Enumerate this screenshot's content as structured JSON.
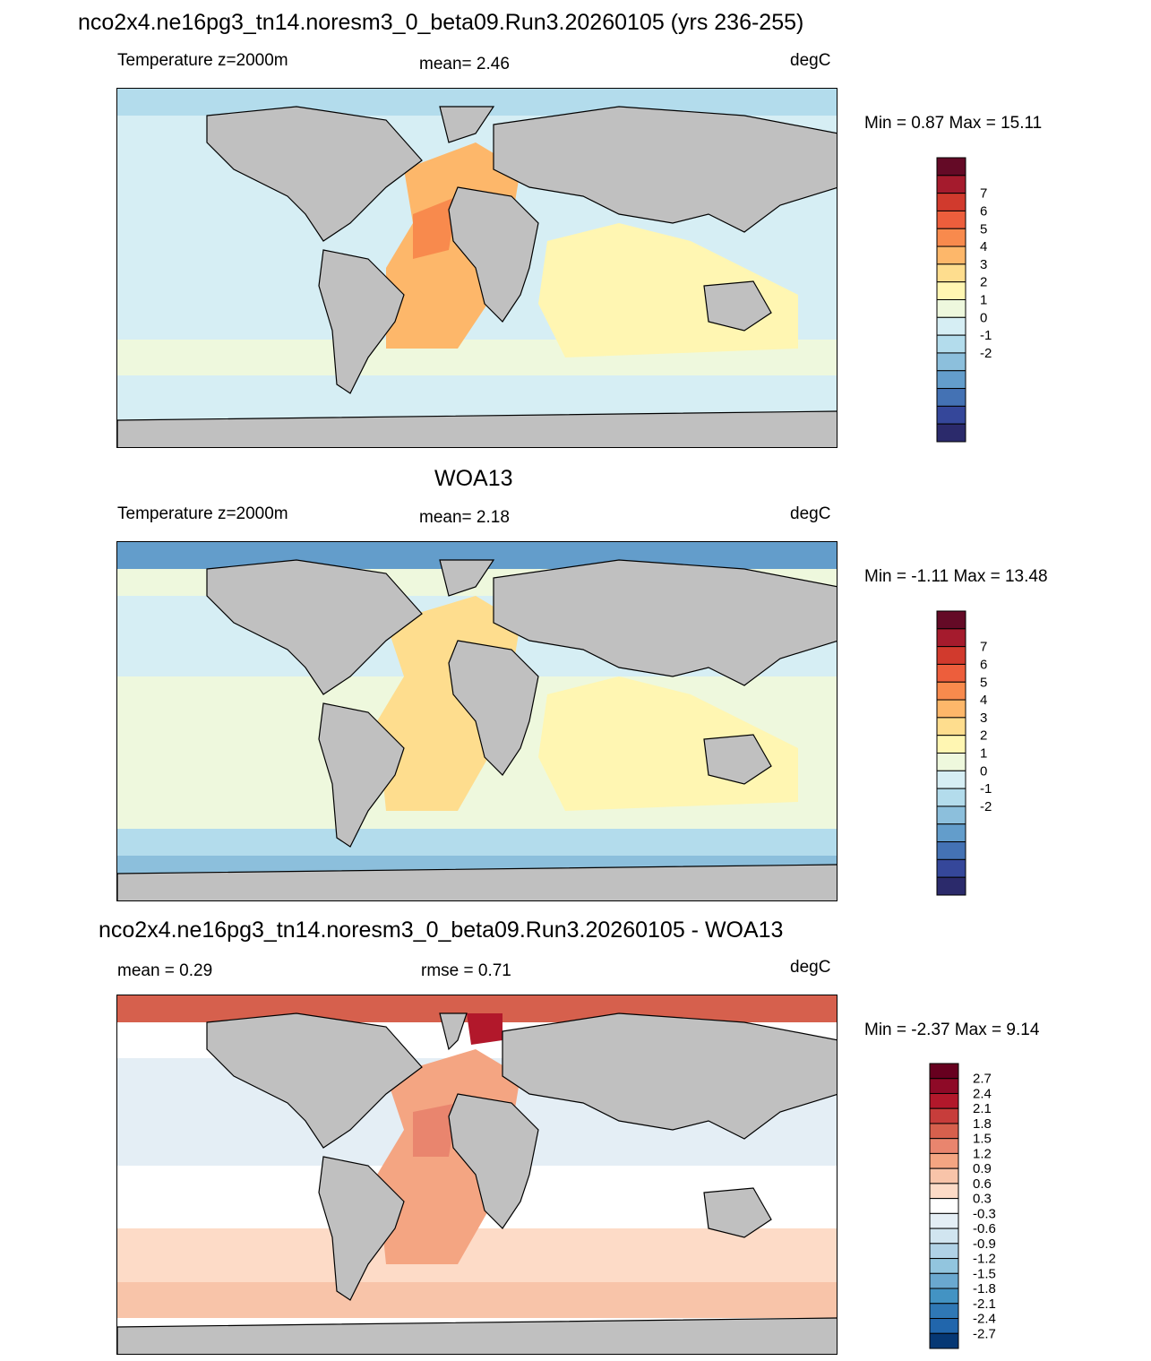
{
  "figure_title": "nco2x4.ne16pg3_tn14.noresm3_0_beta09.Run3.20260105 (yrs 236-255)",
  "panels": [
    {
      "id": "model",
      "heading": "",
      "left_label": "Temperature z=2000m",
      "center_label": "mean=   2.46",
      "units": "degC",
      "minmax": "Min =   0.87 Max =  15.11",
      "colorbar_labels": [
        "7",
        "6",
        "5",
        "4",
        "3",
        "2",
        "1",
        "0",
        "-1",
        "-2"
      ]
    },
    {
      "id": "obs",
      "heading": "WOA13",
      "left_label": "Temperature z=2000m",
      "center_label": "mean=   2.18",
      "units": "degC",
      "minmax": "Min =  -1.11 Max =  13.48",
      "colorbar_labels": [
        "7",
        "6",
        "5",
        "4",
        "3",
        "2",
        "1",
        "0",
        "-1",
        "-2"
      ]
    },
    {
      "id": "diff",
      "heading": "nco2x4.ne16pg3_tn14.noresm3_0_beta09.Run3.20260105 - WOA13",
      "left_label": "mean =   0.29",
      "center_label": "rmse =   0.71",
      "units": "degC",
      "minmax": "Min =  -2.37 Max =   9.14",
      "colorbar_labels": [
        "2.7",
        "2.4",
        "2.1",
        "1.8",
        "1.5",
        "1.2",
        "0.9",
        "0.6",
        "0.3",
        "-0.3",
        "-0.6",
        "-0.9",
        "-1.2",
        "-1.5",
        "-1.8",
        "-2.1",
        "-2.4",
        "-2.7"
      ]
    }
  ],
  "colors": {
    "land": "#c0c0c0",
    "temp_scale": [
      "#640a26",
      "#a51b2d",
      "#d13a2d",
      "#ed5e3c",
      "#f88a4d",
      "#fdb76a",
      "#fedd8e",
      "#fff6b2",
      "#eef8dd",
      "#d6eef4",
      "#b3dcec",
      "#8cbfdc",
      "#639dcb",
      "#4472b4",
      "#35479a",
      "#2b2a6b"
    ],
    "diff_scale": [
      "#67001f",
      "#8e0a27",
      "#b2182b",
      "#c73d3b",
      "#d6604d",
      "#e9856e",
      "#f4a582",
      "#f8c4a9",
      "#fddbc7",
      "#ffffff",
      "#e4eef5",
      "#d1e5f0",
      "#b0d2e6",
      "#92c5de",
      "#6aa8cf",
      "#4393c3",
      "#2f78b5",
      "#2166ac",
      "#063874"
    ]
  }
}
